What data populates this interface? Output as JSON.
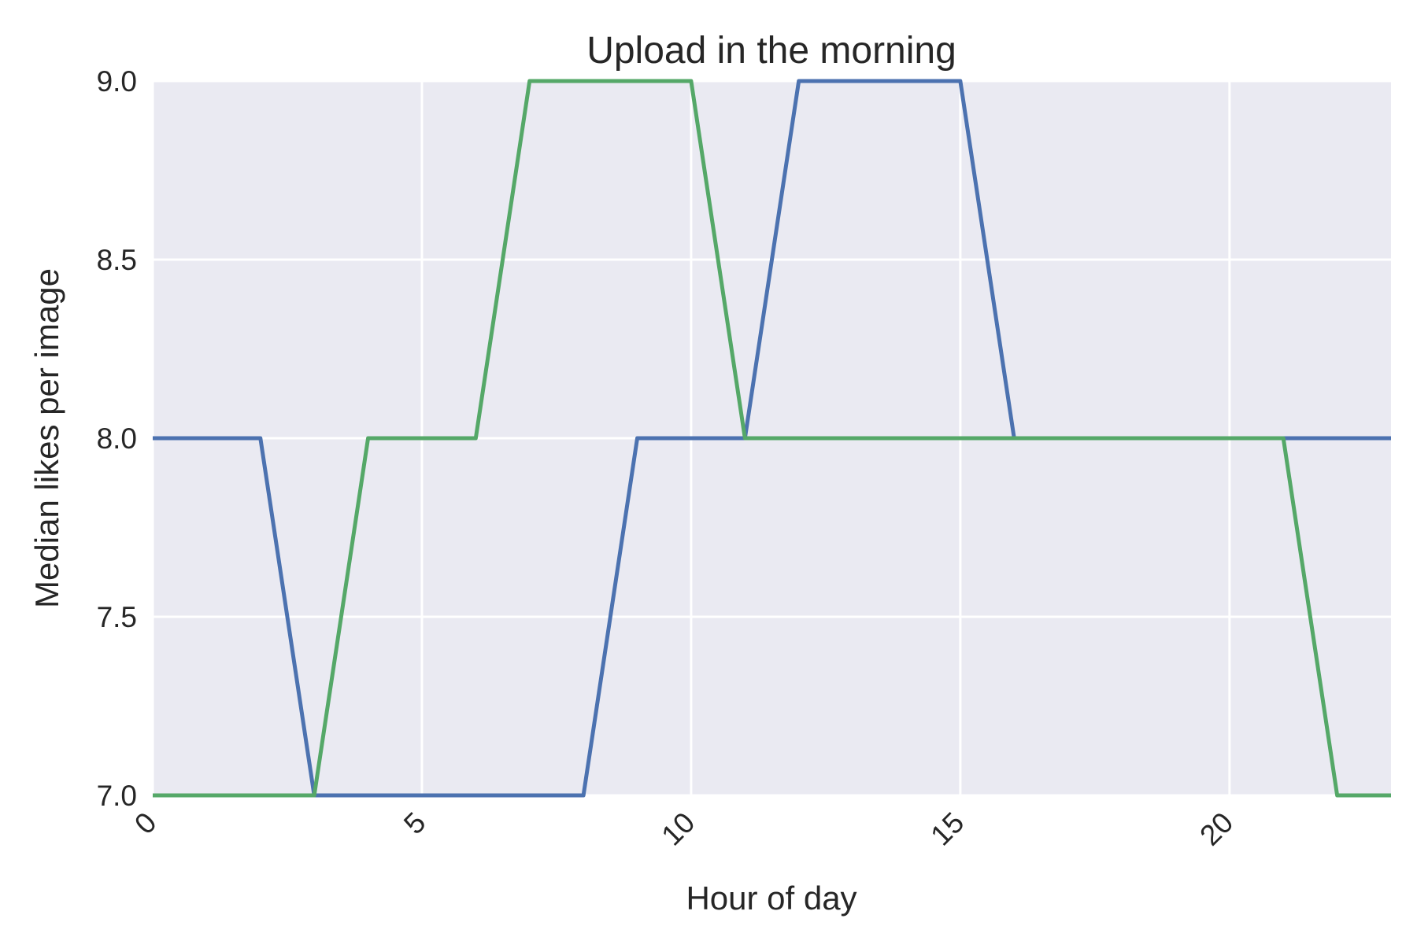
{
  "chart_data": {
    "type": "line",
    "title": "Upload in the morning",
    "xlabel": "Hour of day",
    "ylabel": "Median likes per image",
    "xlim": [
      0,
      23
    ],
    "ylim": [
      7.0,
      9.0
    ],
    "x_ticks": [
      0,
      5,
      10,
      15,
      20
    ],
    "x_tick_labels": [
      "0",
      "5",
      "10",
      "15",
      "20"
    ],
    "y_ticks": [
      7.0,
      7.5,
      8.0,
      8.5,
      9.0
    ],
    "y_tick_labels": [
      "7.0",
      "7.5",
      "8.0",
      "8.5",
      "9.0"
    ],
    "grid": true,
    "legend": "none",
    "x": [
      0,
      1,
      2,
      3,
      4,
      5,
      6,
      7,
      8,
      9,
      10,
      11,
      12,
      13,
      14,
      15,
      16,
      17,
      18,
      19,
      20,
      21,
      22,
      23
    ],
    "series": [
      {
        "color": "#4c72b0",
        "values": [
          8,
          8,
          8,
          7,
          7,
          7,
          7,
          7,
          7,
          8,
          8,
          8,
          9,
          9,
          9,
          9,
          8,
          8,
          8,
          8,
          8,
          8,
          8,
          8
        ]
      },
      {
        "color": "#55a868",
        "values": [
          7,
          7,
          7,
          7,
          8,
          8,
          8,
          9,
          9,
          9,
          9,
          8,
          8,
          8,
          8,
          8,
          8,
          8,
          8,
          8,
          8,
          8,
          7,
          7
        ]
      }
    ]
  },
  "colors": {
    "plot_background": "#eaeaf2",
    "grid": "#ffffff",
    "text": "#262626"
  }
}
